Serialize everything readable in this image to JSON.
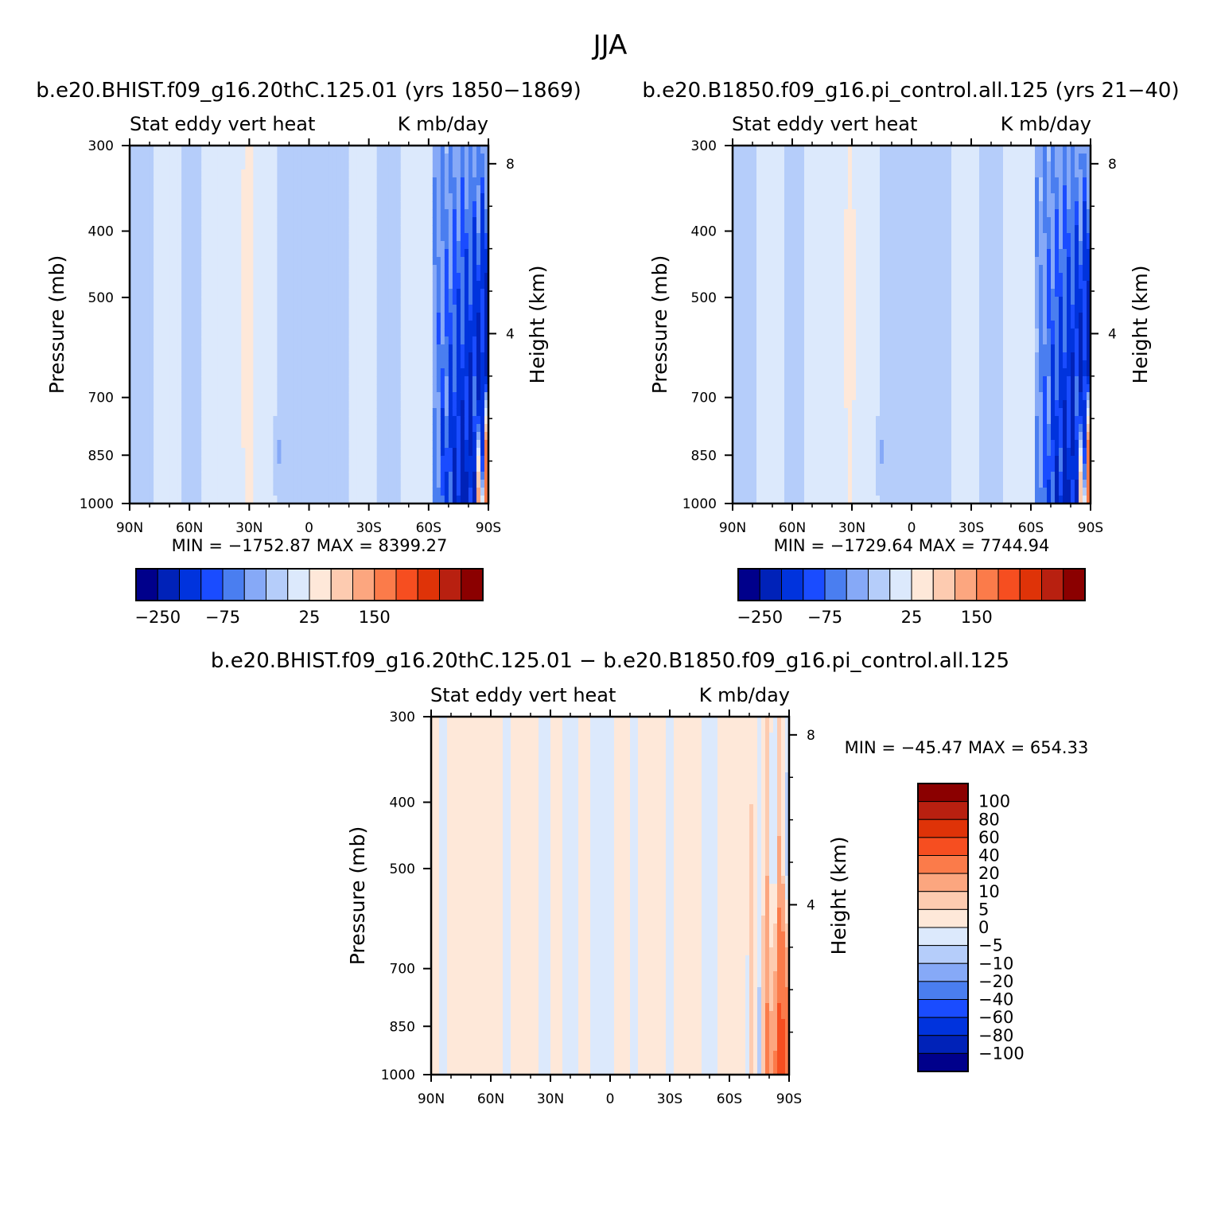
{
  "figure": {
    "season": "JJA",
    "case_a": "b.e20.BHIST.f09_g16.20thC.125.01 (yrs 1850−1869)",
    "case_b": "b.e20.B1850.f09_g16.pi_control.all.125 (yrs 21−40)",
    "diff_title": "b.e20.BHIST.f09_g16.20thC.125.01 − b.e20.B1850.f09_g16.pi_control.all.125"
  },
  "chart_data": [
    {
      "type": "heatmap",
      "id": "panel-a",
      "left_label": "Stat eddy vert heat",
      "right_label": "K mb/day",
      "ylabel": "Pressure (mb)",
      "ylabel_right": "Height (km)",
      "x_ticks": [
        "90N",
        "60N",
        "30N",
        "0",
        "30S",
        "60S",
        "90S"
      ],
      "x_values": [
        90,
        60,
        30,
        0,
        -30,
        -60,
        -90
      ],
      "y_ticks": [
        "300",
        "400",
        "500",
        "700",
        "850",
        "1000"
      ],
      "y_values": [
        300,
        400,
        500,
        700,
        850,
        1000
      ],
      "height_ticks": [
        "8",
        "4"
      ],
      "height_values": [
        8,
        4
      ],
      "minmax": "MIN = −1752.87   MAX = 8399.27",
      "min": -1752.87,
      "max": 8399.27,
      "colorbar_labels": [
        "−250",
        "−75",
        "25",
        "150"
      ]
    },
    {
      "type": "heatmap",
      "id": "panel-b",
      "left_label": "Stat eddy vert heat",
      "right_label": "K mb/day",
      "ylabel": "Pressure (mb)",
      "ylabel_right": "Height (km)",
      "x_ticks": [
        "90N",
        "60N",
        "30N",
        "0",
        "30S",
        "60S",
        "90S"
      ],
      "x_values": [
        90,
        60,
        30,
        0,
        -30,
        -60,
        -90
      ],
      "y_ticks": [
        "300",
        "400",
        "500",
        "700",
        "850",
        "1000"
      ],
      "y_values": [
        300,
        400,
        500,
        700,
        850,
        1000
      ],
      "height_ticks": [
        "8",
        "4"
      ],
      "height_values": [
        8,
        4
      ],
      "minmax": "MIN = −1729.64   MAX = 7744.94",
      "min": -1729.64,
      "max": 7744.94,
      "colorbar_labels": [
        "−250",
        "−75",
        "25",
        "150"
      ]
    },
    {
      "type": "heatmap",
      "id": "panel-diff",
      "left_label": "Stat eddy vert heat",
      "right_label": "K mb/day",
      "ylabel": "Pressure (mb)",
      "ylabel_right": "Height (km)",
      "x_ticks": [
        "90N",
        "60N",
        "30N",
        "0",
        "30S",
        "60S",
        "90S"
      ],
      "x_values": [
        90,
        60,
        30,
        0,
        -30,
        -60,
        -90
      ],
      "y_ticks": [
        "300",
        "400",
        "500",
        "700",
        "850",
        "1000"
      ],
      "y_values": [
        300,
        400,
        500,
        700,
        850,
        1000
      ],
      "height_ticks": [
        "8",
        "4"
      ],
      "height_values": [
        8,
        4
      ],
      "minmax": "MIN = −45.47   MAX = 654.33",
      "min": -45.47,
      "max": 654.33,
      "colorbar_labels": [
        "100",
        "80",
        "60",
        "40",
        "20",
        "10",
        "5",
        "0",
        "−5",
        "−10",
        "−20",
        "−40",
        "−60",
        "−80",
        "−100"
      ]
    }
  ],
  "colormap": [
    "#00008b",
    "#0022b8",
    "#0033dd",
    "#1a4cff",
    "#4a7ef0",
    "#86a9f7",
    "#b5cdfa",
    "#dce9fc",
    "#fee8d9",
    "#fdcbb0",
    "#fca67f",
    "#fb7b4a",
    "#f64e20",
    "#df3308",
    "#b82010",
    "#8b0000"
  ],
  "colormap_diff": [
    "#8b0000",
    "#b82010",
    "#df3308",
    "#f64e20",
    "#fb7b4a",
    "#fca67f",
    "#fdcbb0",
    "#fee8d9",
    "#dce9fc",
    "#b5cdfa",
    "#86a9f7",
    "#4a7ef0",
    "#1a4cff",
    "#0033dd",
    "#0022b8",
    "#00008b"
  ]
}
